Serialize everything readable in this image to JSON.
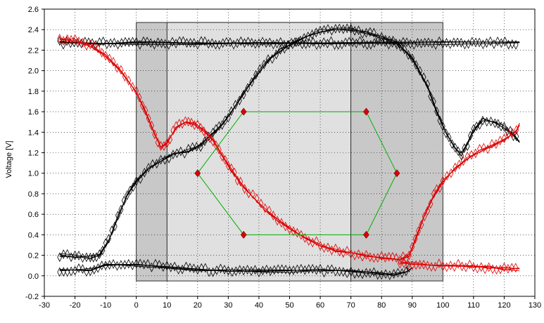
{
  "chart_data": {
    "type": "line",
    "ylabel": "Voltage [V]",
    "xlabel": "",
    "xlim": [
      -30,
      130
    ],
    "ylim": [
      -0.2,
      2.6
    ],
    "x_ticks": [
      -30,
      -20,
      -10,
      0,
      10,
      20,
      30,
      40,
      50,
      60,
      70,
      80,
      90,
      100,
      110,
      120,
      130
    ],
    "y_ticks": [
      -0.2,
      0.0,
      0.2,
      0.4,
      0.6,
      0.8,
      1.0,
      1.2,
      1.4,
      1.6,
      1.8,
      2.0,
      2.2,
      2.4,
      2.6
    ],
    "x_tick_labels": [
      "-30",
      "-20",
      "-10",
      "0",
      "10",
      "20",
      "30",
      "40",
      "50",
      "60",
      "70",
      "80",
      "90",
      "100",
      "110",
      "120",
      "130"
    ],
    "y_tick_labels": [
      "-0.2",
      "0.0",
      "0.2",
      "0.4",
      "0.6",
      "0.8",
      "1.0",
      "1.2",
      "1.4",
      "1.6",
      "1.8",
      "2.0",
      "2.2",
      "2.4",
      "2.6"
    ],
    "grid": true,
    "regions": [
      {
        "name": "outer-mask",
        "x": [
          0,
          100
        ],
        "y": [
          -0.05,
          2.47
        ],
        "color": "#c8c8c8"
      },
      {
        "name": "inner-window",
        "x": [
          10,
          70
        ],
        "y": [
          -0.05,
          2.47
        ],
        "color": "#e0e0e0"
      }
    ],
    "eye_mask": {
      "points": [
        [
          20,
          1.0
        ],
        [
          35,
          1.6
        ],
        [
          75,
          1.6
        ],
        [
          85,
          1.0
        ],
        [
          75,
          0.4
        ],
        [
          35,
          0.4
        ]
      ],
      "line_color": "#00b000",
      "marker_color": "#dd0000"
    },
    "series": [
      {
        "color": "#000000",
        "marker": "diamond",
        "values": [
          [
            -25,
            2.27
          ],
          [
            -12,
            2.27
          ],
          [
            0,
            2.27
          ],
          [
            20,
            2.27
          ],
          [
            40,
            2.27
          ],
          [
            60,
            2.27
          ],
          [
            80,
            2.27
          ],
          [
            100,
            2.27
          ],
          [
            125,
            2.27
          ]
        ]
      },
      {
        "color": "#000000",
        "marker": "diamond",
        "values": [
          [
            -25,
            0.2
          ],
          [
            -20,
            0.19
          ],
          [
            -15,
            0.18
          ],
          [
            -12,
            0.2
          ],
          [
            -9,
            0.35
          ],
          [
            -6,
            0.58
          ],
          [
            -3,
            0.78
          ],
          [
            0,
            0.92
          ],
          [
            4,
            1.05
          ],
          [
            8,
            1.13
          ],
          [
            12,
            1.18
          ],
          [
            17,
            1.22
          ],
          [
            21,
            1.27
          ],
          [
            25,
            1.38
          ],
          [
            28,
            1.48
          ],
          [
            31,
            1.6
          ],
          [
            35,
            1.78
          ],
          [
            39,
            1.95
          ],
          [
            43,
            2.1
          ],
          [
            47,
            2.2
          ],
          [
            51,
            2.27
          ],
          [
            56,
            2.35
          ],
          [
            60,
            2.39
          ],
          [
            65,
            2.4
          ],
          [
            70,
            2.4
          ],
          [
            75,
            2.37
          ],
          [
            80,
            2.33
          ],
          [
            85,
            2.27
          ],
          [
            90,
            2.12
          ],
          [
            95,
            1.85
          ],
          [
            98,
            1.6
          ],
          [
            101,
            1.4
          ],
          [
            104,
            1.25
          ],
          [
            106,
            1.18
          ],
          [
            108,
            1.28
          ],
          [
            110,
            1.42
          ],
          [
            113,
            1.52
          ],
          [
            117,
            1.5
          ],
          [
            120,
            1.45
          ],
          [
            123,
            1.38
          ],
          [
            125,
            1.3
          ]
        ]
      },
      {
        "color": "#000000",
        "marker": "diamond",
        "values": [
          [
            -25,
            0.05
          ],
          [
            -15,
            0.06
          ],
          [
            -10,
            0.1
          ],
          [
            0,
            0.11
          ],
          [
            10,
            0.09
          ],
          [
            20,
            0.06
          ],
          [
            30,
            0.05
          ],
          [
            40,
            0.05
          ],
          [
            50,
            0.05
          ],
          [
            60,
            0.05
          ],
          [
            70,
            0.04
          ],
          [
            80,
            0.02
          ],
          [
            84,
            0.02
          ],
          [
            88,
            0.05
          ],
          [
            90,
            0.08
          ]
        ]
      },
      {
        "color": "#dd0000",
        "marker": "diamond",
        "values": [
          [
            -25,
            2.3
          ],
          [
            -20,
            2.3
          ],
          [
            -15,
            2.25
          ],
          [
            -10,
            2.15
          ],
          [
            -5,
            2.0
          ],
          [
            0,
            1.8
          ],
          [
            3,
            1.6
          ],
          [
            6,
            1.38
          ],
          [
            8,
            1.25
          ],
          [
            10,
            1.3
          ],
          [
            13,
            1.45
          ],
          [
            16,
            1.5
          ],
          [
            19,
            1.48
          ],
          [
            22,
            1.42
          ],
          [
            25,
            1.32
          ],
          [
            28,
            1.18
          ],
          [
            31,
            1.03
          ],
          [
            34,
            0.9
          ],
          [
            38,
            0.78
          ],
          [
            42,
            0.65
          ],
          [
            46,
            0.55
          ],
          [
            50,
            0.47
          ],
          [
            55,
            0.38
          ],
          [
            60,
            0.3
          ],
          [
            65,
            0.25
          ],
          [
            70,
            0.22
          ],
          [
            75,
            0.2
          ],
          [
            80,
            0.18
          ],
          [
            86,
            0.16
          ],
          [
            89,
            0.2
          ],
          [
            91,
            0.35
          ],
          [
            94,
            0.58
          ],
          [
            97,
            0.78
          ],
          [
            100,
            0.92
          ],
          [
            104,
            1.05
          ],
          [
            108,
            1.15
          ],
          [
            112,
            1.22
          ],
          [
            116,
            1.27
          ],
          [
            120,
            1.33
          ],
          [
            124,
            1.42
          ],
          [
            125,
            1.48
          ]
        ]
      },
      {
        "color": "#dd0000",
        "marker": "diamond",
        "values": [
          [
            86,
            0.13
          ],
          [
            90,
            0.12
          ],
          [
            95,
            0.11
          ],
          [
            100,
            0.1
          ],
          [
            105,
            0.1
          ],
          [
            110,
            0.09
          ],
          [
            115,
            0.08
          ],
          [
            120,
            0.07
          ],
          [
            125,
            0.06
          ]
        ]
      }
    ]
  }
}
